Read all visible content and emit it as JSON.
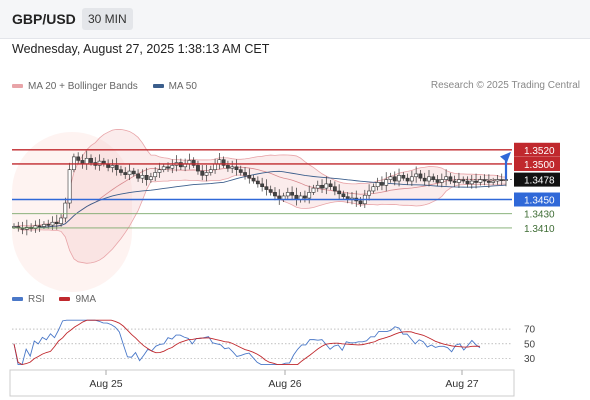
{
  "header": {
    "symbol": "GBP/USD",
    "timeframe": "30 MIN"
  },
  "datetime": "Wednesday, August 27, 2025 1:38:13 AM CET",
  "legend_top": [
    {
      "label": "MA 20 + Bollinger Bands",
      "color": "#e8a4a8"
    },
    {
      "label": "MA 50",
      "color": "#3b5e8c"
    }
  ],
  "credit": "Research © 2025 Trading Central",
  "legend_bottom": [
    {
      "label": "RSI",
      "color": "#4a78c8"
    },
    {
      "label": "9MA",
      "color": "#c0282d"
    }
  ],
  "colors": {
    "resistance": "#c0282d",
    "support": "#2f68d8",
    "minor": "#7aa86a",
    "forecast": "#2f68d8"
  },
  "chart_data": [
    {
      "type": "candlestick",
      "x_axis": {
        "ticks": [
          "Aug 25",
          "Aug 26",
          "Aug 27"
        ]
      },
      "ylim": [
        1.3393,
        1.3545
      ],
      "levels": [
        {
          "label": "1.3520",
          "value": 1.352,
          "kind": "resistance"
        },
        {
          "label": "1.3500",
          "value": 1.35,
          "kind": "resistance"
        },
        {
          "label": "1.3478",
          "value": 1.3478,
          "kind": "current"
        },
        {
          "label": "1.3450",
          "value": 1.345,
          "kind": "support"
        },
        {
          "label": "1.3430",
          "value": 1.343,
          "kind": "minor"
        },
        {
          "label": "1.3410",
          "value": 1.341,
          "kind": "minor"
        }
      ],
      "close": [
        1.3412,
        1.341,
        1.3408,
        1.3411,
        1.3409,
        1.3413,
        1.3412,
        1.3415,
        1.3414,
        1.3418,
        1.3416,
        1.3424,
        1.3445,
        1.3492,
        1.351,
        1.3505,
        1.35,
        1.3508,
        1.3502,
        1.3498,
        1.3504,
        1.35,
        1.3495,
        1.3498,
        1.3492,
        1.3488,
        1.3485,
        1.349,
        1.3486,
        1.348,
        1.3484,
        1.3478,
        1.3482,
        1.3488,
        1.3492,
        1.3496,
        1.3494,
        1.3498,
        1.3502,
        1.3496,
        1.35,
        1.3505,
        1.3498,
        1.349,
        1.3484,
        1.3488,
        1.3492,
        1.35,
        1.3506,
        1.3498,
        1.3494,
        1.3496,
        1.3492,
        1.3488,
        1.3484,
        1.348,
        1.3476,
        1.3472,
        1.3468,
        1.3464,
        1.346,
        1.3455,
        1.345,
        1.3455,
        1.346,
        1.3456,
        1.345,
        1.3455,
        1.3452,
        1.346,
        1.3466,
        1.347,
        1.3466,
        1.3472,
        1.3468,
        1.3462,
        1.3458,
        1.3454,
        1.345,
        1.3452,
        1.3448,
        1.3444,
        1.3456,
        1.3462,
        1.3468,
        1.3474,
        1.347,
        1.3478,
        1.3482,
        1.3476,
        1.3484,
        1.348,
        1.3476,
        1.3482,
        1.3486,
        1.348,
        1.3476,
        1.3482,
        1.3478,
        1.3474,
        1.3478,
        1.3482,
        1.3476,
        1.3474,
        1.3478,
        1.3476,
        1.3472,
        1.3476,
        1.3474,
        1.3478,
        1.3476,
        1.3474,
        1.3476,
        1.3478,
        1.3477,
        1.3478
      ]
    },
    {
      "type": "line",
      "series": [
        {
          "name": "RSI"
        },
        {
          "name": "9MA"
        }
      ],
      "y_ticks": [
        70,
        50,
        30
      ],
      "ylim": [
        20,
        85
      ]
    }
  ]
}
